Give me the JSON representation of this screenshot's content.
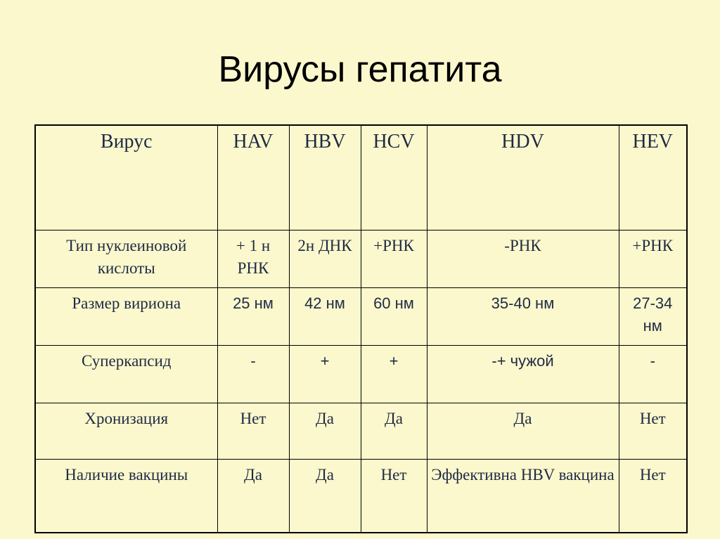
{
  "title": "Вирусы гепатита",
  "table": {
    "header": [
      "Вирус",
      "HAV",
      "HBV",
      "HCV",
      "HDV",
      "HEV"
    ],
    "rows": [
      {
        "label": "Тип нуклеиновой кислоты",
        "cells": [
          "+ 1 н РНК",
          "2н ДНК",
          "+РНК",
          "-РНК",
          "+РНК"
        ]
      },
      {
        "label": "Размер вириона",
        "cells": [
          "25 нм",
          "42 нм",
          "60 нм",
          "35-40 нм",
          "27-34 нм"
        ]
      },
      {
        "label": "Суперкапсид",
        "cells": [
          "-",
          "+",
          "+",
          "-+ чужой",
          "-"
        ]
      },
      {
        "label": "Хронизация",
        "cells": [
          "Нет",
          "Да",
          "Да",
          "Да",
          "Нет"
        ]
      },
      {
        "label": "Наличие вакцины",
        "cells": [
          "Да",
          "Да",
          "Нет",
          "Эффективна HBV вакцина",
          "Нет"
        ]
      }
    ]
  }
}
